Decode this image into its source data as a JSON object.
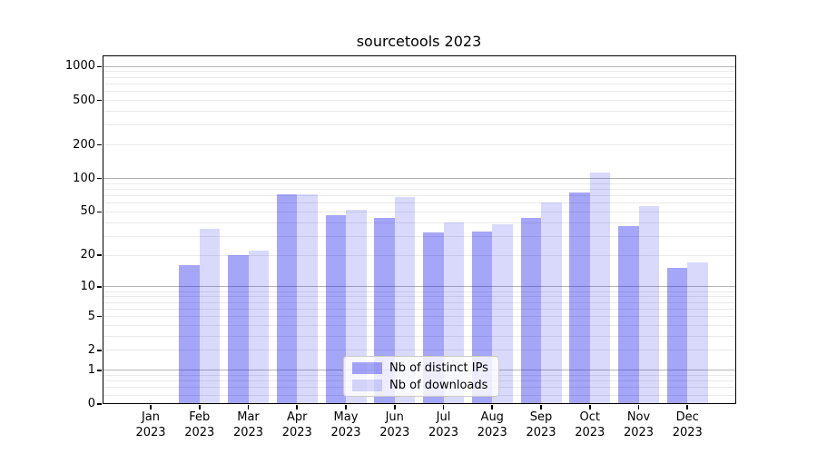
{
  "title": "sourcetools 2023",
  "chart_data": {
    "type": "bar",
    "title": "sourcetools 2023",
    "categories": [
      "Jan",
      "Feb",
      "Mar",
      "Apr",
      "May",
      "Jun",
      "Jul",
      "Aug",
      "Sep",
      "Oct",
      "Nov",
      "Dec"
    ],
    "year": "2023",
    "series": [
      {
        "name": "Nb of distinct IPs",
        "color": "rgba(0,0,238,0.35)",
        "values": [
          0,
          16,
          20,
          71,
          46,
          44,
          32,
          33,
          44,
          74,
          37,
          15
        ]
      },
      {
        "name": "Nb of downloads",
        "color": "rgba(0,0,238,0.15)",
        "values": [
          0,
          35,
          22,
          71,
          52,
          67,
          40,
          38,
          60,
          113,
          56,
          17
        ]
      }
    ],
    "y_scale": "log10(1+v)",
    "y_ticks": [
      0,
      1,
      2,
      5,
      10,
      20,
      50,
      100,
      200,
      500,
      1000
    ],
    "y_minor_gridlines": [
      0.2,
      0.4,
      0.6,
      0.8,
      2,
      3,
      4,
      5,
      6,
      7,
      8,
      9,
      20,
      30,
      40,
      50,
      60,
      70,
      80,
      90,
      200,
      300,
      400,
      500,
      600,
      700,
      800,
      900
    ],
    "y_major_gridlines": [
      1,
      10,
      100,
      1000
    ],
    "ylim": [
      0,
      1256
    ],
    "grid": true,
    "legend_position": "lower center",
    "colors": {
      "bar_ips": "rgba(0,0,238,0.35)",
      "bar_downloads": "rgba(0,0,238,0.15)",
      "grid_major": "#b4b4b4",
      "grid_minor": "#e9e9e9",
      "spine": "#000000",
      "background": "#ffffff"
    }
  }
}
